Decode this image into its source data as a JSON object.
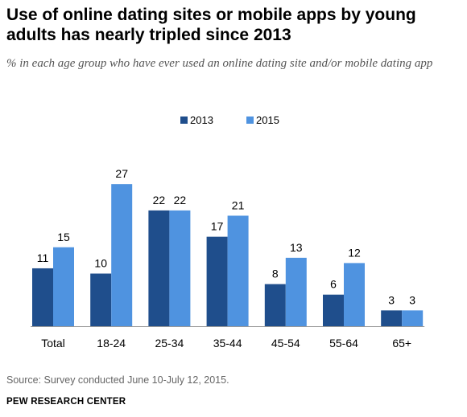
{
  "title": "Use of online dating sites or mobile apps by young adults has nearly tripled since 2013",
  "subtitle": "% in each age group who have ever used an online dating site and/or mobile dating app",
  "source": "Source: Survey conducted June 10-July 12, 2015.",
  "organization": "PEW RESEARCH CENTER",
  "chart_data": {
    "type": "bar",
    "categories": [
      "Total",
      "18-24",
      "25-34",
      "35-44",
      "45-54",
      "55-64",
      "65+"
    ],
    "series": [
      {
        "name": "2013",
        "values": [
          11,
          10,
          22,
          17,
          8,
          6,
          3
        ],
        "color": "#1f4e8c"
      },
      {
        "name": "2015",
        "values": [
          15,
          27,
          22,
          21,
          13,
          12,
          3
        ],
        "color": "#4f93e0"
      }
    ],
    "legend_position": "top-center",
    "data_labels": true,
    "grid": false
  }
}
